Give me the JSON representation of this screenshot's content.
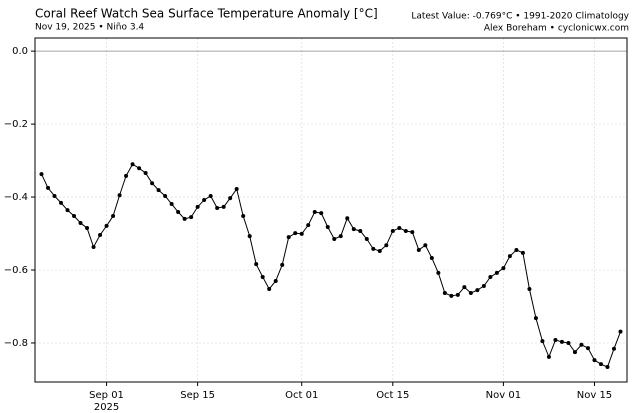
{
  "chart_data": {
    "type": "line",
    "title": "Coral Reef Watch Sea Surface Temperature Anomaly [°C]",
    "subtitle": "Nov 19, 2025 • Niño 3.4",
    "annotations": [
      "Latest Value: -0.769°C • 1991-2020 Climatology",
      "Alex Boreham • cyclonicwx.com"
    ],
    "x_year_label": "2025",
    "x": [
      "2025-08-22",
      "2025-08-23",
      "2025-08-24",
      "2025-08-25",
      "2025-08-26",
      "2025-08-27",
      "2025-08-28",
      "2025-08-29",
      "2025-08-30",
      "2025-08-31",
      "2025-09-01",
      "2025-09-02",
      "2025-09-03",
      "2025-09-04",
      "2025-09-05",
      "2025-09-06",
      "2025-09-07",
      "2025-09-08",
      "2025-09-09",
      "2025-09-10",
      "2025-09-11",
      "2025-09-12",
      "2025-09-13",
      "2025-09-14",
      "2025-09-15",
      "2025-09-16",
      "2025-09-17",
      "2025-09-18",
      "2025-09-19",
      "2025-09-20",
      "2025-09-21",
      "2025-09-22",
      "2025-09-23",
      "2025-09-24",
      "2025-09-25",
      "2025-09-26",
      "2025-09-27",
      "2025-09-28",
      "2025-09-29",
      "2025-09-30",
      "2025-10-01",
      "2025-10-02",
      "2025-10-03",
      "2025-10-04",
      "2025-10-05",
      "2025-10-06",
      "2025-10-07",
      "2025-10-08",
      "2025-10-09",
      "2025-10-10",
      "2025-10-11",
      "2025-10-12",
      "2025-10-13",
      "2025-10-14",
      "2025-10-15",
      "2025-10-16",
      "2025-10-17",
      "2025-10-18",
      "2025-10-19",
      "2025-10-20",
      "2025-10-21",
      "2025-10-22",
      "2025-10-23",
      "2025-10-24",
      "2025-10-25",
      "2025-10-26",
      "2025-10-27",
      "2025-10-28",
      "2025-10-29",
      "2025-10-30",
      "2025-10-31",
      "2025-11-01",
      "2025-11-02",
      "2025-11-03",
      "2025-11-04",
      "2025-11-05",
      "2025-11-06",
      "2025-11-07",
      "2025-11-08",
      "2025-11-09",
      "2025-11-10",
      "2025-11-11",
      "2025-11-12",
      "2025-11-13",
      "2025-11-14",
      "2025-11-15",
      "2025-11-16",
      "2025-11-17",
      "2025-11-18",
      "2025-11-19"
    ],
    "values": [
      -0.337,
      -0.375,
      -0.397,
      -0.416,
      -0.436,
      -0.452,
      -0.471,
      -0.485,
      -0.537,
      -0.504,
      -0.479,
      -0.452,
      -0.395,
      -0.342,
      -0.31,
      -0.321,
      -0.334,
      -0.362,
      -0.381,
      -0.397,
      -0.419,
      -0.441,
      -0.46,
      -0.455,
      -0.427,
      -0.408,
      -0.397,
      -0.43,
      -0.427,
      -0.403,
      -0.378,
      -0.452,
      -0.507,
      -0.584,
      -0.619,
      -0.652,
      -0.63,
      -0.586,
      -0.51,
      -0.499,
      -0.501,
      -0.477,
      -0.441,
      -0.444,
      -0.482,
      -0.515,
      -0.507,
      -0.458,
      -0.488,
      -0.493,
      -0.515,
      -0.542,
      -0.548,
      -0.532,
      -0.493,
      -0.485,
      -0.493,
      -0.496,
      -0.545,
      -0.532,
      -0.567,
      -0.608,
      -0.663,
      -0.671,
      -0.668,
      -0.647,
      -0.663,
      -0.655,
      -0.644,
      -0.619,
      -0.608,
      -0.595,
      -0.562,
      -0.545,
      -0.553,
      -0.652,
      -0.732,
      -0.795,
      -0.838,
      -0.792,
      -0.797,
      -0.8,
      -0.825,
      -0.805,
      -0.814,
      -0.847,
      -0.858,
      -0.866,
      -0.816,
      -0.769
    ],
    "color": "#000000",
    "xlim": [
      "2025-08-21",
      "2025-11-20"
    ],
    "xticks": [
      {
        "value": "2025-09-01",
        "label": "Sep 01"
      },
      {
        "value": "2025-09-15",
        "label": "Sep 15"
      },
      {
        "value": "2025-10-01",
        "label": "Oct 01"
      },
      {
        "value": "2025-10-15",
        "label": "Oct 15"
      },
      {
        "value": "2025-11-01",
        "label": "Nov 01"
      },
      {
        "value": "2025-11-15",
        "label": "Nov 15"
      }
    ],
    "ylim": [
      -0.907,
      0.036
    ],
    "yticks": [
      {
        "value": 0,
        "label": "0.0"
      },
      {
        "value": -0.2,
        "label": "−0.2"
      },
      {
        "value": -0.4,
        "label": "−0.4"
      },
      {
        "value": -0.6,
        "label": "−0.6"
      },
      {
        "value": -0.8,
        "label": "−0.8"
      }
    ],
    "grid": true,
    "reference_line": 0
  }
}
